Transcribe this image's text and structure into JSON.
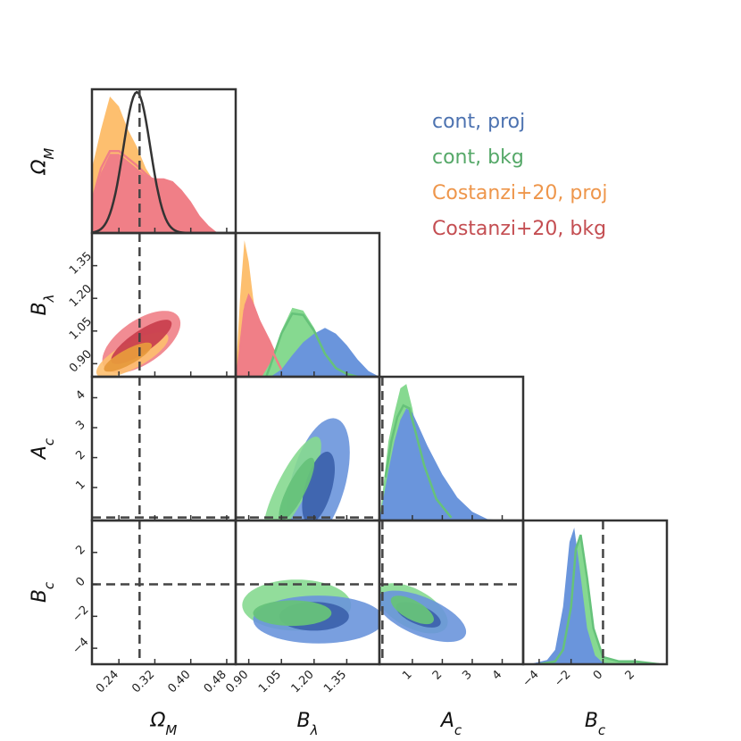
{
  "chart_data": {
    "type": "corner",
    "parameters": [
      {
        "key": "om",
        "label_main": "Ω",
        "label_sub": "M",
        "range": [
          0.18,
          0.5
        ],
        "ticks": [
          0.24,
          0.32,
          0.4,
          0.48
        ],
        "tick_labels": [
          "0.24",
          "0.32",
          "0.40",
          "0.48"
        ],
        "truth": 0.286
      },
      {
        "key": "bl",
        "label_main": "B",
        "label_sub": "λ",
        "range": [
          0.84,
          1.5
        ],
        "ticks": [
          0.9,
          1.05,
          1.2,
          1.35
        ],
        "tick_labels": [
          "0.90",
          "1.05",
          "1.20",
          "1.35"
        ],
        "truth": null
      },
      {
        "key": "ac",
        "label_main": "A",
        "label_sub": "c",
        "range": [
          -0.1,
          4.7
        ],
        "ticks": [
          1,
          2,
          3,
          4
        ],
        "tick_labels": [
          "1",
          "2",
          "3",
          "4"
        ],
        "truth": 0
      },
      {
        "key": "bc",
        "label_main": "B",
        "label_sub": "c",
        "range": [
          -5,
          4
        ],
        "ticks": [
          -4,
          -2,
          0,
          2
        ],
        "tick_labels": [
          "−4",
          "−2",
          "0",
          "2"
        ],
        "truth": 0
      }
    ],
    "legend": {
      "placement": "top-right",
      "entries": [
        {
          "label": "cont, proj",
          "color": "#4c72b0"
        },
        {
          "label": "cont, bkg",
          "color": "#55a868"
        },
        {
          "label": "Costanzi+20, proj",
          "color": "#ee964b"
        },
        {
          "label": "Costanzi+20, bkg",
          "color": "#c44e52"
        }
      ]
    },
    "colors": {
      "cont_proj": "#6a95dc",
      "cont_proj_dark": "#3d63ad",
      "cont_bkg": "#86d990",
      "cont_bkg_line": "#66c27a",
      "cost_proj": "#fdbf6f",
      "cost_proj_dark": "#e79a3c",
      "cost_bkg": "#f07f87",
      "cost_bkg_dark": "#c9404e",
      "prior": "#333333",
      "truth_line": "#444444"
    },
    "prior": {
      "param": "om",
      "mean": 0.28,
      "sigma": 0.03
    },
    "marginals": [
      {
        "param": "om",
        "series": [
          {
            "name": "Costanzi+20, proj",
            "style": "fill",
            "color": "cost_proj",
            "x": [
              0.18,
              0.2,
              0.22,
              0.24,
              0.26,
              0.28,
              0.3,
              0.32,
              0.34,
              0.36,
              0.38,
              0.4,
              0.42,
              0.44,
              0.46
            ],
            "y": [
              0.45,
              0.72,
              0.95,
              0.88,
              0.72,
              0.6,
              0.45,
              0.35,
              0.26,
              0.17,
              0.1,
              0.05,
              0.02,
              0.01,
              0.0
            ]
          },
          {
            "name": "Costanzi+20, bkg",
            "style": "fill",
            "color": "cost_bkg",
            "x": [
              0.18,
              0.2,
              0.22,
              0.24,
              0.26,
              0.28,
              0.3,
              0.32,
              0.34,
              0.36,
              0.38,
              0.4,
              0.42,
              0.44,
              0.46
            ],
            "y": [
              0.2,
              0.42,
              0.55,
              0.55,
              0.5,
              0.45,
              0.4,
              0.38,
              0.38,
              0.36,
              0.3,
              0.22,
              0.12,
              0.05,
              0.0
            ]
          },
          {
            "name": "Costanzi+20, bkg (line)",
            "style": "line",
            "color": "cost_bkg",
            "x": [
              0.18,
              0.2,
              0.22,
              0.24,
              0.26,
              0.28,
              0.3,
              0.32,
              0.34
            ],
            "y": [
              0.22,
              0.45,
              0.57,
              0.57,
              0.52,
              0.47,
              0.41,
              0.36,
              0.3
            ]
          }
        ]
      },
      {
        "param": "bl",
        "series": [
          {
            "name": "Costanzi+20, proj",
            "style": "fill",
            "color": "cost_proj",
            "x": [
              0.84,
              0.86,
              0.88,
              0.9,
              0.92,
              0.94,
              0.96,
              0.98,
              1.0,
              1.02
            ],
            "y": [
              0.0,
              0.55,
              0.95,
              0.8,
              0.55,
              0.35,
              0.2,
              0.08,
              0.02,
              0.0
            ]
          },
          {
            "name": "Costanzi+20, bkg",
            "style": "fill",
            "color": "cost_bkg",
            "x": [
              0.84,
              0.86,
              0.88,
              0.9,
              0.92,
              0.95,
              1.0,
              1.05,
              1.1
            ],
            "y": [
              0.0,
              0.25,
              0.5,
              0.58,
              0.52,
              0.4,
              0.25,
              0.08,
              0.0
            ]
          },
          {
            "name": "cont, bkg",
            "style": "fill",
            "color": "cont_bkg",
            "x": [
              0.96,
              1.0,
              1.05,
              1.1,
              1.15,
              1.2,
              1.25,
              1.3,
              1.35,
              1.4
            ],
            "y": [
              0.0,
              0.1,
              0.32,
              0.48,
              0.46,
              0.34,
              0.18,
              0.08,
              0.02,
              0.0
            ]
          },
          {
            "name": "cont, proj",
            "style": "fill",
            "color": "cont_proj",
            "x": [
              1.0,
              1.05,
              1.1,
              1.15,
              1.2,
              1.25,
              1.3,
              1.35,
              1.4,
              1.45,
              1.5
            ],
            "y": [
              0.0,
              0.05,
              0.15,
              0.24,
              0.3,
              0.34,
              0.3,
              0.22,
              0.12,
              0.04,
              0.0
            ]
          },
          {
            "name": "cont, bkg (line)",
            "style": "line",
            "color": "cont_bkg_line",
            "x": [
              0.98,
              1.0,
              1.05,
              1.1,
              1.15,
              1.2,
              1.25,
              1.3,
              1.35,
              1.4
            ],
            "y": [
              0.0,
              0.08,
              0.3,
              0.44,
              0.43,
              0.32,
              0.16,
              0.06,
              0.02,
              0.0
            ]
          },
          {
            "name": "Costanzi+20, bkg (line)",
            "style": "line",
            "color": "cost_bkg",
            "x": [
              0.86,
              0.88,
              0.9,
              0.92,
              0.95,
              1.0,
              1.05
            ],
            "y": [
              0.2,
              0.46,
              0.56,
              0.5,
              0.38,
              0.2,
              0.05
            ]
          }
        ]
      },
      {
        "param": "ac",
        "series": [
          {
            "name": "cont, bkg",
            "style": "fill",
            "color": "cont_bkg",
            "x": [
              -0.1,
              0.2,
              0.4,
              0.6,
              0.8,
              1.0,
              1.2,
              1.5,
              2.0,
              2.5,
              3.0
            ],
            "y": [
              0.0,
              0.55,
              0.75,
              0.92,
              0.95,
              0.78,
              0.55,
              0.3,
              0.1,
              0.02,
              0.0
            ]
          },
          {
            "name": "cont, proj",
            "style": "fill",
            "color": "cont_proj",
            "x": [
              -0.1,
              0.2,
              0.4,
              0.6,
              0.8,
              1.0,
              1.2,
              1.5,
              2.0,
              2.5,
              3.0,
              3.5,
              4.0
            ],
            "y": [
              0.0,
              0.35,
              0.55,
              0.7,
              0.78,
              0.75,
              0.66,
              0.52,
              0.32,
              0.16,
              0.06,
              0.01,
              0.0
            ]
          },
          {
            "name": "cont, bkg (line)",
            "style": "line",
            "color": "cont_bkg_line",
            "x": [
              0.1,
              0.3,
              0.5,
              0.7,
              0.9,
              1.1,
              1.4,
              1.8,
              2.3
            ],
            "y": [
              0.3,
              0.55,
              0.72,
              0.8,
              0.78,
              0.62,
              0.38,
              0.15,
              0.02
            ]
          }
        ]
      },
      {
        "param": "bc",
        "series": [
          {
            "name": "cont, bkg",
            "style": "fill",
            "color": "cont_bkg",
            "x": [
              -4.0,
              -3.0,
              -2.5,
              -2.0,
              -1.7,
              -1.4,
              -1.0,
              -0.6,
              0.0,
              1.0,
              2.0,
              3.5
            ],
            "y": [
              0.0,
              0.02,
              0.1,
              0.4,
              0.8,
              0.9,
              0.6,
              0.25,
              0.05,
              0.02,
              0.02,
              0.0
            ]
          },
          {
            "name": "cont, proj",
            "style": "fill",
            "color": "cont_proj",
            "x": [
              -4.6,
              -3.5,
              -3.0,
              -2.5,
              -2.1,
              -1.8,
              -1.5,
              -1.0,
              -0.5,
              0.0,
              1.0
            ],
            "y": [
              0.0,
              0.03,
              0.1,
              0.4,
              0.85,
              0.95,
              0.7,
              0.25,
              0.06,
              0.01,
              0.0
            ]
          },
          {
            "name": "cont, bkg (line)",
            "style": "line",
            "color": "cont_bkg_line",
            "x": [
              -4.0,
              -3.0,
              -2.5,
              -2.0,
              -1.7,
              -1.4,
              -1.0,
              -0.6,
              0.0,
              1.0,
              2.0,
              3.5
            ],
            "y": [
              0.0,
              0.02,
              0.1,
              0.4,
              0.8,
              0.9,
              0.6,
              0.25,
              0.05,
              0.02,
              0.02,
              0.0
            ]
          }
        ]
      }
    ],
    "joint": [
      {
        "x": "om",
        "y": "bl",
        "contours": [
          {
            "name": "Costanzi+20, bkg",
            "level": "2sigma",
            "color": "cost_bkg",
            "cx": 0.29,
            "cy": 1.0,
            "rx": 0.1,
            "ry": 0.1,
            "rot": 0.6
          },
          {
            "name": "Costanzi+20, proj",
            "level": "2sigma",
            "color": "cost_proj",
            "cx": 0.27,
            "cy": 0.94,
            "rx": 0.09,
            "ry": 0.06,
            "rot": 0.5
          },
          {
            "name": "Costanzi+20, bkg",
            "level": "1sigma",
            "color": "cost_bkg_dark",
            "cx": 0.29,
            "cy": 1.0,
            "rx": 0.08,
            "ry": 0.05,
            "rot": 0.6
          },
          {
            "name": "Costanzi+20, proj",
            "level": "1sigma",
            "color": "cost_proj_dark",
            "cx": 0.26,
            "cy": 0.93,
            "rx": 0.06,
            "ry": 0.035,
            "rot": 0.5
          }
        ]
      },
      {
        "x": "bl",
        "y": "ac",
        "contours": [
          {
            "name": "cont, proj",
            "level": "2sigma",
            "color": "cont_proj",
            "cx": 1.22,
            "cy": 1.2,
            "rx": 0.3,
            "ry": 0.9,
            "rot": 1.3
          },
          {
            "name": "cont, bkg",
            "level": "2sigma",
            "color": "cont_bkg",
            "cx": 1.1,
            "cy": 1.0,
            "rx": 0.26,
            "ry": 0.5,
            "rot": 1.1
          },
          {
            "name": "cont, proj",
            "level": "1sigma",
            "color": "cont_proj_dark",
            "cx": 1.22,
            "cy": 1.0,
            "rx": 0.17,
            "ry": 0.45,
            "rot": 1.3
          },
          {
            "name": "cont, bkg",
            "level": "1sigma",
            "color": "cont_bkg_line",
            "cx": 1.12,
            "cy": 0.95,
            "rx": 0.16,
            "ry": 0.3,
            "rot": 1.1
          }
        ]
      },
      {
        "x": "bl",
        "y": "bc",
        "contours": [
          {
            "name": "cont, bkg",
            "level": "2sigma",
            "color": "cont_bkg",
            "cx": 1.12,
            "cy": -1.3,
            "rx": 0.25,
            "ry": 1.6,
            "rot": 0.0
          },
          {
            "name": "cont, proj",
            "level": "2sigma",
            "color": "cont_proj",
            "cx": 1.22,
            "cy": -2.2,
            "rx": 0.3,
            "ry": 1.5,
            "rot": 0.0
          },
          {
            "name": "cont, proj",
            "level": "1sigma",
            "color": "cont_proj_dark",
            "cx": 1.2,
            "cy": -2.0,
            "rx": 0.16,
            "ry": 0.9,
            "rot": 0.0
          },
          {
            "name": "cont, bkg",
            "level": "1sigma",
            "color": "cont_bkg_line",
            "cx": 1.1,
            "cy": -1.8,
            "rx": 0.18,
            "ry": 0.8,
            "rot": 0.0
          }
        ]
      },
      {
        "x": "ac",
        "y": "bc",
        "contours": [
          {
            "name": "cont, bkg",
            "level": "2sigma",
            "color": "cont_bkg",
            "cx": 1.0,
            "cy": -1.5,
            "rx": 1.3,
            "ry": 1.2,
            "rot": -0.5
          },
          {
            "name": "cont, proj",
            "level": "2sigma",
            "color": "cont_proj",
            "cx": 1.3,
            "cy": -2.0,
            "rx": 1.6,
            "ry": 1.2,
            "rot": -0.4
          },
          {
            "name": "cont, proj",
            "level": "1sigma",
            "color": "cont_proj_dark",
            "cx": 1.2,
            "cy": -1.9,
            "rx": 0.8,
            "ry": 0.6,
            "rot": -0.4
          },
          {
            "name": "cont, bkg",
            "level": "1sigma",
            "color": "cont_bkg_line",
            "cx": 1.0,
            "cy": -1.6,
            "rx": 0.8,
            "ry": 0.6,
            "rot": -0.5
          }
        ]
      }
    ],
    "grid": false,
    "title": ""
  }
}
